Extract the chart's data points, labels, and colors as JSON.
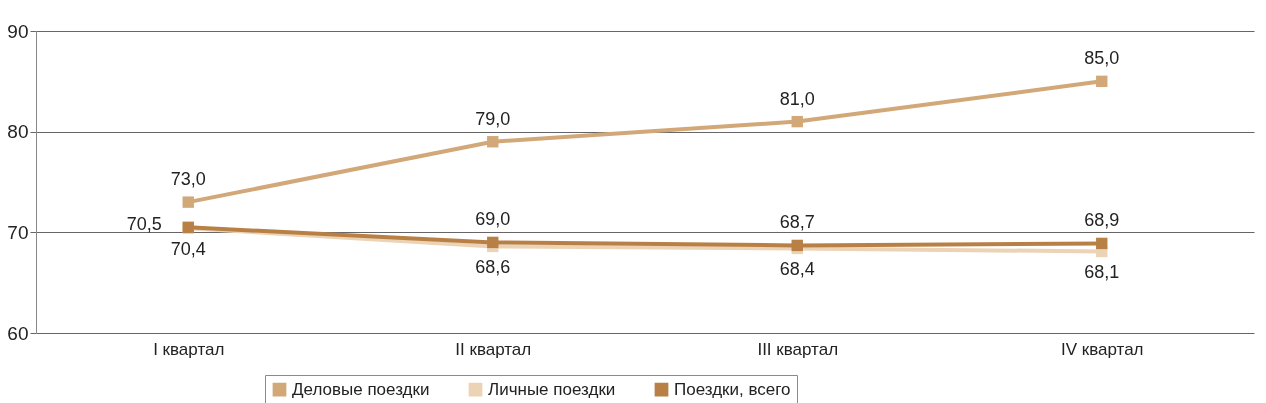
{
  "chart_data": {
    "type": "line",
    "categories": [
      "I квартал",
      "II квартал",
      "III квартал",
      "IV квартал"
    ],
    "series": [
      {
        "name": "Деловые поездки",
        "color": "#d2a878",
        "values": [
          73.0,
          79.0,
          81.0,
          85.0
        ],
        "value_labels": [
          "73,0",
          "79,0",
          "81,0",
          "85,0"
        ]
      },
      {
        "name": "Личные поездки",
        "color": "#ecd3b5",
        "values": [
          70.4,
          68.6,
          68.4,
          68.1
        ],
        "value_labels": [
          "70,4",
          "68,6",
          "68,4",
          "68,1"
        ]
      },
      {
        "name": "Поездки, всего",
        "color": "#b98046",
        "values": [
          70.5,
          69.0,
          68.7,
          68.9
        ],
        "value_labels": [
          "70,5",
          "69,0",
          "68,7",
          "68,9"
        ]
      }
    ],
    "ylim": [
      60,
      90
    ],
    "yticks": [
      60,
      70,
      80,
      90
    ],
    "grid": "y",
    "legend": "bottom",
    "marker": "square",
    "line_style": "solid"
  }
}
